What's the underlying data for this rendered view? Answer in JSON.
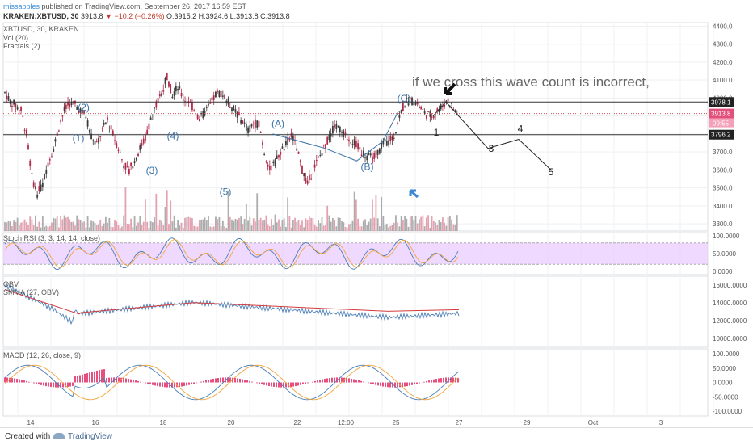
{
  "header": {
    "user": "missapples",
    "published": "published on TradingView.com, September 26, 2017 16:59 EST",
    "symbol_line": "KRAKEN:XBTUSD, 30",
    "last": "3913.8",
    "change": "▼ −10.2 (−0.26%)",
    "ohlc": "O:3915.2 H:3924.6 L:3913.8 C:3913.8"
  },
  "legend": {
    "symbol": "XBTUSD, 30, KRAKEN",
    "vol": "Vol (20)",
    "fractals": "Fractals (2)",
    "stoch": "Stoch RSI (3, 3, 14, 14, close)",
    "obv": "OBV",
    "smma": "SMMA (27, OBV)",
    "macd": "MACD (12, 26, close, 9)"
  },
  "footer": {
    "created": "Created with",
    "brand": "TradingView"
  },
  "colors": {
    "up": "#3c3c3c",
    "down": "#b22a4a",
    "grid": "#eef0f3",
    "wave": "#3b73a8",
    "macd_hist": "#e0245e",
    "rsi_band": "#e8c9ff",
    "rsi_line": "#8a55c8",
    "smma": "#d43c3c",
    "obv": "#4a7db6",
    "signal": "#f2a33a"
  },
  "chart_data": {
    "type": "candlestick",
    "x_tick_labels": [
      "14",
      "16",
      "18",
      "20",
      "22",
      "12:00",
      "25",
      "27",
      "29",
      "Oct",
      "3"
    ],
    "price_axis": [
      "4400.0",
      "4300.0",
      "4200.0",
      "4100.0",
      "4000.0",
      "3900.0",
      "3800.0",
      "3700.0",
      "3600.0",
      "3500.0",
      "3400.0",
      "3300.0"
    ],
    "price_range": [
      3260,
      4420
    ],
    "price_path": [
      4030,
      3980,
      3960,
      3930,
      3800,
      3560,
      3470,
      3520,
      3640,
      3720,
      3840,
      3930,
      3970,
      3960,
      3930,
      3900,
      3790,
      3740,
      3820,
      3880,
      3800,
      3720,
      3630,
      3600,
      3650,
      3720,
      3780,
      3880,
      3960,
      4030,
      4120,
      4020,
      4060,
      4000,
      3980,
      3940,
      3880,
      3920,
      3960,
      4020,
      4030,
      3990,
      3950,
      3910,
      3870,
      3820,
      3860,
      3860,
      3700,
      3600,
      3640,
      3700,
      3740,
      3800,
      3720,
      3600,
      3520,
      3600,
      3660,
      3720,
      3780,
      3850,
      3820,
      3790,
      3770,
      3740,
      3700,
      3680,
      3660,
      3700,
      3740,
      3760,
      3790,
      3900,
      3970,
      3990,
      3980,
      3940,
      3910,
      3900,
      3930,
      3960,
      3990,
      3940,
      3910
    ],
    "levels": {
      "resistance": "3978.1",
      "last_price": "3913.8",
      "countdown": "09:55",
      "support": "3796.2"
    },
    "wave_labels": [
      {
        "text": "(1)",
        "time": 1.4,
        "price": 3760
      },
      {
        "text": "(2)",
        "time": 1.5,
        "price": 3930
      },
      {
        "text": "(3)",
        "time": 2.8,
        "price": 3580
      },
      {
        "text": "(4)",
        "time": 3.2,
        "price": 3770
      },
      {
        "text": "(5)",
        "time": 4.2,
        "price": 3460
      },
      {
        "text": "(A)",
        "time": 5.2,
        "price": 3840
      },
      {
        "text": "(B)",
        "time": 6.9,
        "price": 3600
      },
      {
        "text": "(C)",
        "time": 7.6,
        "price": 3980
      }
    ],
    "projection": {
      "labels": [
        "1",
        "3",
        "4",
        "5"
      ],
      "path_prices": [
        3970,
        3820,
        3770,
        3850,
        3660
      ]
    },
    "annotation": "if we cross this wave count is incorrect,",
    "stoch_axis": [
      "100.0000",
      "50.0000",
      "0.0000"
    ],
    "obv_axis": [
      "16000.0000",
      "14000.0000",
      "12000.0000",
      "10000.0000"
    ],
    "macd_axis": [
      "100.0000",
      "50.0000",
      "0.0000",
      "-50.0000",
      "-100.0000"
    ]
  }
}
